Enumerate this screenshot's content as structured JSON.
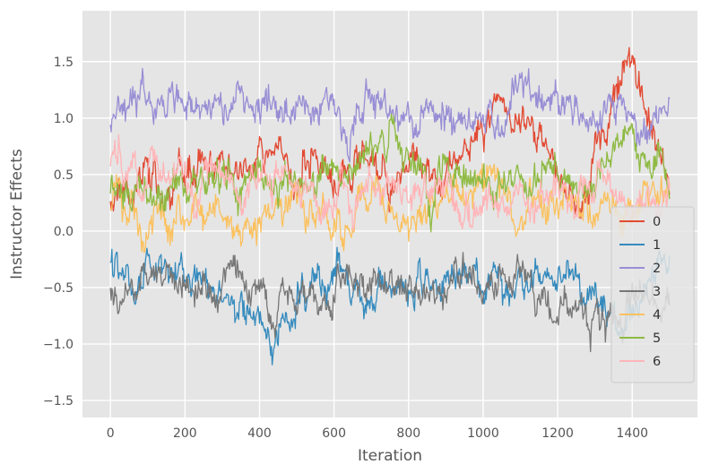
{
  "figure": {
    "background": "#ffffff"
  },
  "chart_data": {
    "type": "line",
    "title": "",
    "xlabel": "Iteration",
    "ylabel": "Instructor Effects",
    "xlim": [
      -75,
      1575
    ],
    "ylim": [
      -1.65,
      1.95
    ],
    "x_range": [
      0,
      1500
    ],
    "xticks": [
      0,
      200,
      400,
      600,
      800,
      1000,
      1200,
      1400
    ],
    "xtick_labels": [
      "0",
      "200",
      "400",
      "600",
      "800",
      "1000",
      "1200",
      "1400"
    ],
    "yticks": [
      -1.5,
      -1.0,
      -0.5,
      0.0,
      0.5,
      1.0,
      1.5
    ],
    "ytick_labels": [
      "−1.5",
      "−1.0",
      "−0.5",
      "0.0",
      "0.5",
      "1.0",
      "1.5"
    ],
    "grid": true,
    "plot_background": "#E5E5E5",
    "grid_color": "#ffffff",
    "tick_color": "#555555",
    "label_color": "#555555",
    "legend": {
      "position": "center-right",
      "background": "#E5E5E5",
      "border_color": "#cccccc",
      "labels": [
        "0",
        "1",
        "2",
        "3",
        "4",
        "5",
        "6"
      ]
    },
    "series": [
      {
        "name": "0",
        "color": "#E24A33",
        "approx_mean": 0.55,
        "noise_sd": 0.13,
        "seed": 11,
        "keyframes": [
          [
            0,
            0.35
          ],
          [
            100,
            0.55
          ],
          [
            150,
            0.2
          ],
          [
            250,
            0.5
          ],
          [
            400,
            0.55
          ],
          [
            550,
            0.6
          ],
          [
            700,
            0.45
          ],
          [
            850,
            0.5
          ],
          [
            950,
            0.8
          ],
          [
            1050,
            1.1
          ],
          [
            1120,
            1.0
          ],
          [
            1200,
            0.45
          ],
          [
            1270,
            0.25
          ],
          [
            1330,
            0.9
          ],
          [
            1400,
            1.6
          ],
          [
            1450,
            1.0
          ],
          [
            1500,
            0.6
          ]
        ]
      },
      {
        "name": "1",
        "color": "#348ABD",
        "approx_mean": -0.5,
        "noise_sd": 0.12,
        "seed": 22,
        "keyframes": [
          [
            0,
            -0.3
          ],
          [
            100,
            -0.45
          ],
          [
            200,
            -0.55
          ],
          [
            300,
            -0.5
          ],
          [
            430,
            -0.95
          ],
          [
            500,
            -0.6
          ],
          [
            600,
            -0.35
          ],
          [
            700,
            -0.5
          ],
          [
            800,
            -0.5
          ],
          [
            900,
            -0.55
          ],
          [
            1000,
            -0.5
          ],
          [
            1100,
            -0.4
          ],
          [
            1200,
            -0.35
          ],
          [
            1300,
            -0.6
          ],
          [
            1380,
            -0.85
          ],
          [
            1450,
            -0.4
          ],
          [
            1500,
            -0.45
          ]
        ]
      },
      {
        "name": "2",
        "color": "#988ED5",
        "approx_mean": 1.05,
        "noise_sd": 0.12,
        "seed": 33,
        "keyframes": [
          [
            0,
            0.9
          ],
          [
            80,
            1.3
          ],
          [
            150,
            1.05
          ],
          [
            250,
            1.1
          ],
          [
            350,
            1.15
          ],
          [
            450,
            1.0
          ],
          [
            550,
            1.05
          ],
          [
            650,
            1.1
          ],
          [
            750,
            1.0
          ],
          [
            850,
            0.95
          ],
          [
            950,
            0.9
          ],
          [
            1050,
            1.15
          ],
          [
            1100,
            1.45
          ],
          [
            1150,
            1.1
          ],
          [
            1250,
            1.05
          ],
          [
            1350,
            1.15
          ],
          [
            1430,
            1.0
          ],
          [
            1500,
            1.15
          ]
        ]
      },
      {
        "name": "3",
        "color": "#777777",
        "approx_mean": -0.55,
        "noise_sd": 0.12,
        "seed": 44,
        "keyframes": [
          [
            0,
            -0.55
          ],
          [
            100,
            -0.5
          ],
          [
            200,
            -0.65
          ],
          [
            300,
            -0.5
          ],
          [
            400,
            -0.55
          ],
          [
            500,
            -0.6
          ],
          [
            600,
            -0.45
          ],
          [
            700,
            -0.4
          ],
          [
            800,
            -0.55
          ],
          [
            900,
            -0.5
          ],
          [
            1000,
            -0.45
          ],
          [
            1100,
            -0.5
          ],
          [
            1200,
            -0.75
          ],
          [
            1300,
            -0.8
          ],
          [
            1400,
            -0.65
          ],
          [
            1500,
            -0.6
          ]
        ]
      },
      {
        "name": "4",
        "color": "#FBC15E",
        "approx_mean": 0.2,
        "noise_sd": 0.13,
        "seed": 55,
        "keyframes": [
          [
            0,
            0.15
          ],
          [
            100,
            -0.05
          ],
          [
            200,
            0.2
          ],
          [
            300,
            0.15
          ],
          [
            400,
            0.1
          ],
          [
            500,
            0.2
          ],
          [
            600,
            0.05
          ],
          [
            700,
            0.2
          ],
          [
            800,
            0.15
          ],
          [
            900,
            0.3
          ],
          [
            1000,
            0.4
          ],
          [
            1100,
            0.2
          ],
          [
            1200,
            0.3
          ],
          [
            1300,
            0.2
          ],
          [
            1400,
            0.25
          ],
          [
            1500,
            0.35
          ]
        ]
      },
      {
        "name": "5",
        "color": "#8EBA42",
        "approx_mean": 0.5,
        "noise_sd": 0.12,
        "seed": 66,
        "keyframes": [
          [
            0,
            0.25
          ],
          [
            100,
            0.4
          ],
          [
            200,
            0.55
          ],
          [
            300,
            0.6
          ],
          [
            400,
            0.55
          ],
          [
            500,
            0.45
          ],
          [
            600,
            0.55
          ],
          [
            700,
            0.6
          ],
          [
            800,
            0.5
          ],
          [
            900,
            0.55
          ],
          [
            1000,
            0.45
          ],
          [
            1100,
            0.5
          ],
          [
            1200,
            0.4
          ],
          [
            1300,
            0.55
          ],
          [
            1400,
            0.75
          ],
          [
            1450,
            0.55
          ],
          [
            1500,
            0.4
          ]
        ]
      },
      {
        "name": "6",
        "color": "#FFB5B8",
        "approx_mean": 0.38,
        "noise_sd": 0.12,
        "seed": 77,
        "keyframes": [
          [
            0,
            0.55
          ],
          [
            100,
            0.5
          ],
          [
            200,
            0.45
          ],
          [
            300,
            0.4
          ],
          [
            400,
            0.45
          ],
          [
            500,
            0.4
          ],
          [
            600,
            0.35
          ],
          [
            700,
            0.45
          ],
          [
            800,
            0.4
          ],
          [
            900,
            0.35
          ],
          [
            1000,
            0.3
          ],
          [
            1100,
            0.35
          ],
          [
            1200,
            0.3
          ],
          [
            1300,
            0.35
          ],
          [
            1400,
            0.3
          ],
          [
            1500,
            0.3
          ]
        ]
      }
    ]
  }
}
